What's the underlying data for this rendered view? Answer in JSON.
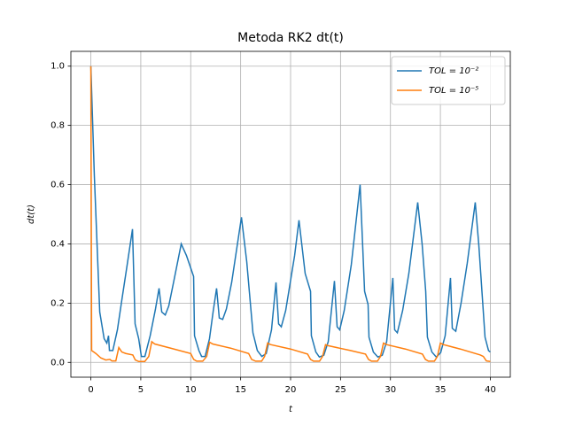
{
  "chart_data": {
    "type": "line",
    "title": "Metoda RK2 dt(t)",
    "x_label": "t",
    "y_label": "dt(t)",
    "xlim": [
      -2,
      42
    ],
    "ylim": [
      -0.05,
      1.05
    ],
    "xticks": [
      0,
      5,
      10,
      15,
      20,
      25,
      30,
      35,
      40
    ],
    "yticks": [
      {
        "value": 0,
        "label": "0.0"
      },
      0.2,
      0.4,
      0.6,
      0.8,
      {
        "value": 1,
        "label": "1.0"
      }
    ],
    "grid": true,
    "legend": "upper right",
    "series": [
      {
        "name": "TOL = 10⁻²",
        "color": "#1f77b4",
        "x": [
          0,
          0.35,
          0.89,
          1.33,
          1.6,
          1.77,
          1.86,
          2.2,
          2.66,
          3.1,
          3.64,
          4.17,
          4.43,
          4.79,
          5.06,
          5.41,
          5.94,
          6.47,
          6.83,
          7.1,
          7.45,
          7.8,
          8.34,
          9.05,
          9.58,
          10.29,
          10.38,
          10.82,
          11.09,
          11.44,
          11.88,
          12.24,
          12.59,
          12.86,
          13.2,
          13.57,
          14.1,
          15.08,
          15.61,
          16.23,
          16.67,
          17.12,
          17.56,
          18.09,
          18.54,
          18.8,
          19.07,
          19.51,
          20.4,
          20.84,
          21.46,
          22.0,
          22.08,
          22.53,
          22.88,
          23.33,
          23.77,
          24.39,
          24.66,
          24.92,
          25.37,
          26.08,
          26.96,
          27.41,
          27.76,
          27.85,
          28.29,
          28.74,
          29.18,
          29.62,
          30.24,
          30.42,
          30.69,
          31.22,
          31.84,
          32.73,
          33.17,
          33.53,
          33.7,
          34.15,
          34.59,
          35.03,
          35.48,
          36.01,
          36.19,
          36.54,
          37.07,
          37.69,
          38.49,
          38.85,
          39.47,
          39.82,
          40.0
        ],
        "values": [
          1.0,
          0.63,
          0.17,
          0.08,
          0.065,
          0.09,
          0.04,
          0.04,
          0.11,
          0.21,
          0.33,
          0.45,
          0.13,
          0.08,
          0.02,
          0.02,
          0.09,
          0.18,
          0.25,
          0.17,
          0.16,
          0.19,
          0.28,
          0.4,
          0.36,
          0.29,
          0.09,
          0.04,
          0.02,
          0.02,
          0.08,
          0.17,
          0.25,
          0.15,
          0.145,
          0.18,
          0.27,
          0.49,
          0.34,
          0.1,
          0.04,
          0.02,
          0.03,
          0.11,
          0.27,
          0.13,
          0.12,
          0.175,
          0.36,
          0.48,
          0.3,
          0.24,
          0.09,
          0.035,
          0.018,
          0.024,
          0.07,
          0.275,
          0.12,
          0.11,
          0.175,
          0.33,
          0.6,
          0.24,
          0.195,
          0.085,
          0.035,
          0.018,
          0.024,
          0.07,
          0.285,
          0.11,
          0.1,
          0.175,
          0.3,
          0.54,
          0.4,
          0.24,
          0.085,
          0.035,
          0.018,
          0.033,
          0.09,
          0.285,
          0.115,
          0.105,
          0.2,
          0.335,
          0.54,
          0.395,
          0.085,
          0.04,
          0.035
        ]
      },
      {
        "name": "TOL = 10⁻⁵",
        "color": "#ff7f0e",
        "x": [
          0,
          0.08,
          0.5,
          1.0,
          1.5,
          1.9,
          2.1,
          2.5,
          2.8,
          3.1,
          3.5,
          4.2,
          4.45,
          4.8,
          5.4,
          5.8,
          6.1,
          6.4,
          8,
          10.0,
          10.3,
          10.6,
          11.2,
          11.6,
          11.9,
          12.2,
          14,
          15.8,
          16.1,
          16.5,
          17.1,
          17.4,
          17.7,
          18.0,
          20,
          21.7,
          22.0,
          22.3,
          22.9,
          23.2,
          23.5,
          23.8,
          26,
          27.5,
          27.8,
          28.1,
          28.7,
          29.0,
          29.3,
          29.6,
          31.5,
          33.2,
          33.5,
          33.8,
          34.4,
          34.7,
          35.0,
          35.3,
          37,
          39.0,
          39.3,
          39.6,
          40
        ],
        "values": [
          1.0,
          0.04,
          0.03,
          0.015,
          0.008,
          0.01,
          0.005,
          0.005,
          0.05,
          0.035,
          0.03,
          0.025,
          0.008,
          0.003,
          0.003,
          0.02,
          0.07,
          0.062,
          0.048,
          0.03,
          0.01,
          0.004,
          0.004,
          0.02,
          0.068,
          0.062,
          0.048,
          0.03,
          0.01,
          0.004,
          0.004,
          0.02,
          0.065,
          0.06,
          0.045,
          0.028,
          0.01,
          0.004,
          0.004,
          0.02,
          0.06,
          0.056,
          0.04,
          0.028,
          0.01,
          0.004,
          0.004,
          0.02,
          0.065,
          0.06,
          0.045,
          0.028,
          0.01,
          0.004,
          0.004,
          0.02,
          0.065,
          0.06,
          0.045,
          0.025,
          0.02,
          0.005,
          0.003
        ]
      }
    ]
  }
}
